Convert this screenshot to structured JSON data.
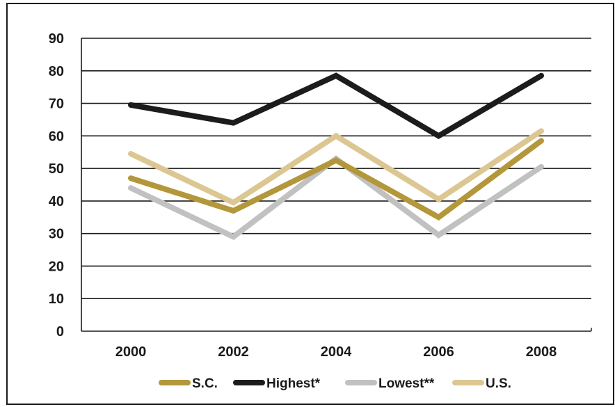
{
  "chart_data": {
    "type": "line",
    "title": "",
    "xlabel": "",
    "ylabel": "",
    "categories": [
      "2000",
      "2002",
      "2004",
      "2006",
      "2008"
    ],
    "ylim": [
      0,
      90
    ],
    "yticks": [
      "0",
      "10",
      "20",
      "30",
      "40",
      "50",
      "60",
      "70",
      "80",
      "90"
    ],
    "grid": true,
    "legend_position": "bottom",
    "series": [
      {
        "name": "S.C.",
        "color": "#b3973a",
        "values": [
          47,
          37,
          52.5,
          35,
          58.5
        ]
      },
      {
        "name": "Highest*",
        "color": "#1c1c1c",
        "values": [
          69.5,
          64,
          78.5,
          60,
          78.5
        ]
      },
      {
        "name": "Lowest**",
        "color": "#c1c1c1",
        "values": [
          44,
          29,
          53,
          29.5,
          50.5
        ]
      },
      {
        "name": "U.S.",
        "color": "#dcc792",
        "values": [
          54.5,
          39.5,
          60,
          40.5,
          61.5
        ]
      }
    ],
    "draw_order": [
      2,
      3,
      0,
      1
    ]
  }
}
